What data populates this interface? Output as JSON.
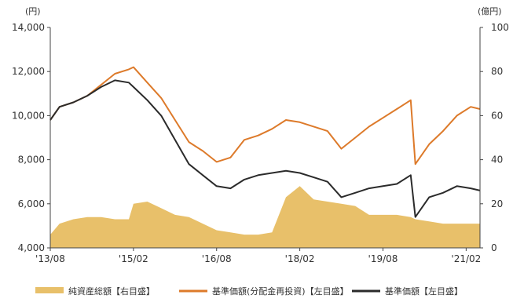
{
  "chart_data": {
    "type": "line",
    "title": "",
    "left_axis": {
      "unit": "(円)",
      "ylim": [
        4000,
        14000
      ],
      "ticks": [
        "4,000",
        "6,000",
        "8,000",
        "10,000",
        "12,000",
        "14,000"
      ],
      "tick_values": [
        4000,
        6000,
        8000,
        10000,
        12000,
        14000
      ]
    },
    "right_axis": {
      "unit": "(億円)",
      "ylim": [
        0,
        100
      ],
      "ticks": [
        "0",
        "20",
        "40",
        "60",
        "80",
        "100"
      ],
      "tick_values": [
        0,
        20,
        40,
        60,
        80,
        100
      ]
    },
    "x_axis": {
      "range": [
        "2013-08",
        "2021-05"
      ],
      "ticks": [
        "'13/08",
        "'15/02",
        "'16/08",
        "'18/02",
        "'19/08",
        "'21/02"
      ],
      "tick_dates": [
        "2013-08",
        "2015-02",
        "2016-08",
        "2018-02",
        "2019-08",
        "2021-02"
      ]
    },
    "grid": false,
    "legend_position": "bottom",
    "legend": [
      {
        "label": "純資産総額【右目盛】",
        "color": "#e8c06a",
        "kind": "area"
      },
      {
        "label": "基準価額(分配金再投資)【左目盛】",
        "color": "#dd7a2a",
        "kind": "line"
      },
      {
        "label": "基準価額【左目盛】",
        "color": "#2b2b2b",
        "kind": "line"
      }
    ],
    "series": [
      {
        "name": "純資産総額【右目盛】",
        "axis": "right",
        "color": "#e8c06a",
        "x": [
          "2013-08",
          "2013-10",
          "2014-01",
          "2014-04",
          "2014-07",
          "2014-10",
          "2015-01",
          "2015-02",
          "2015-05",
          "2015-08",
          "2015-11",
          "2016-02",
          "2016-05",
          "2016-08",
          "2016-11",
          "2017-02",
          "2017-05",
          "2017-08",
          "2017-11",
          "2018-02",
          "2018-05",
          "2018-08",
          "2018-11",
          "2019-02",
          "2019-05",
          "2019-08",
          "2019-11",
          "2020-02",
          "2020-03",
          "2020-06",
          "2020-09",
          "2020-12",
          "2021-03",
          "2021-05"
        ],
        "values": [
          6,
          11,
          13,
          14,
          14,
          13,
          13,
          20,
          21,
          18,
          15,
          14,
          11,
          8,
          7,
          6,
          6,
          7,
          23,
          28,
          22,
          21,
          20,
          19,
          15,
          15,
          15,
          14,
          13,
          12,
          11,
          11,
          11,
          11
        ]
      },
      {
        "name": "基準価額(分配金再投資)【左目盛】",
        "axis": "left",
        "color": "#dd7a2a",
        "x": [
          "2013-08",
          "2013-10",
          "2014-01",
          "2014-04",
          "2014-07",
          "2014-10",
          "2015-01",
          "2015-02",
          "2015-05",
          "2015-08",
          "2015-11",
          "2016-02",
          "2016-05",
          "2016-08",
          "2016-11",
          "2017-02",
          "2017-05",
          "2017-08",
          "2017-11",
          "2018-02",
          "2018-05",
          "2018-08",
          "2018-11",
          "2019-02",
          "2019-05",
          "2019-08",
          "2019-11",
          "2020-02",
          "2020-03",
          "2020-06",
          "2020-09",
          "2020-12",
          "2021-03",
          "2021-05"
        ],
        "values": [
          9800,
          10400,
          10600,
          10900,
          11400,
          11900,
          12100,
          12200,
          11500,
          10800,
          9800,
          8800,
          8400,
          7900,
          8100,
          8900,
          9100,
          9400,
          9800,
          9700,
          9500,
          9300,
          8500,
          9000,
          9500,
          9900,
          10300,
          10700,
          7800,
          8700,
          9300,
          10000,
          10400,
          10300
        ]
      },
      {
        "name": "基準価額【左目盛】",
        "axis": "left",
        "color": "#2b2b2b",
        "x": [
          "2013-08",
          "2013-10",
          "2014-01",
          "2014-04",
          "2014-07",
          "2014-10",
          "2015-01",
          "2015-02",
          "2015-05",
          "2015-08",
          "2015-11",
          "2016-02",
          "2016-05",
          "2016-08",
          "2016-11",
          "2017-02",
          "2017-05",
          "2017-08",
          "2017-11",
          "2018-02",
          "2018-05",
          "2018-08",
          "2018-11",
          "2019-02",
          "2019-05",
          "2019-08",
          "2019-11",
          "2020-02",
          "2020-03",
          "2020-06",
          "2020-09",
          "2020-12",
          "2021-03",
          "2021-05"
        ],
        "values": [
          9800,
          10400,
          10600,
          10900,
          11300,
          11600,
          11500,
          11300,
          10700,
          10000,
          8900,
          7800,
          7300,
          6800,
          6700,
          7100,
          7300,
          7400,
          7500,
          7400,
          7200,
          7000,
          6300,
          6500,
          6700,
          6800,
          6900,
          7300,
          5400,
          6300,
          6500,
          6800,
          6700,
          6600
        ]
      }
    ]
  }
}
